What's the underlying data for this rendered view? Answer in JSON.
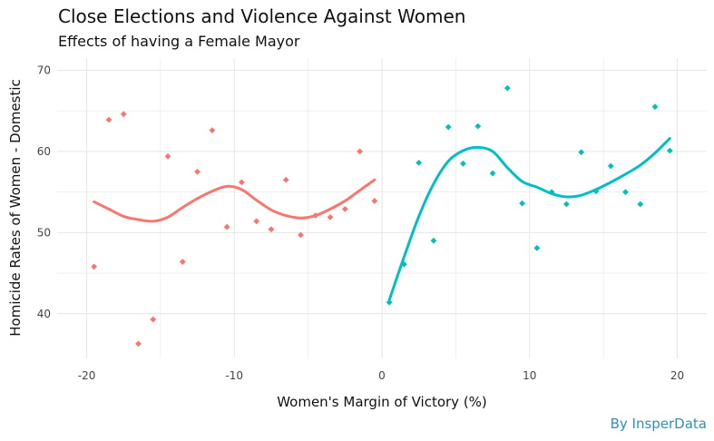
{
  "title": "Close Elections and Violence Against Women",
  "subtitle": "Effects of having a Female Mayor",
  "caption": "By InsperData",
  "caption_color": "#2e8fbf",
  "colors": {
    "left_series": "#f8766d",
    "right_series": "#00bfc4",
    "grid": "#e6e6e6",
    "text": "#444444"
  },
  "chart_data": {
    "type": "scatter",
    "title": "Close Elections and Violence Against Women",
    "subtitle": "Effects of having a Female Mayor",
    "xlabel": "Women's Margin of Victory (%)",
    "ylabel": "Homicide Rates of Women - Domestic",
    "xlim": [
      -22,
      22
    ],
    "ylim": [
      34.5,
      71.5
    ],
    "x_ticks": [
      -20,
      -10,
      0,
      10,
      20
    ],
    "y_ticks": [
      40,
      50,
      60,
      70
    ],
    "x_tick_labels": [
      "-20",
      "-10",
      "0",
      "10",
      "20"
    ],
    "y_tick_labels": [
      "40",
      "50",
      "60",
      "70"
    ],
    "grid": true,
    "legend": "none",
    "series": [
      {
        "points": [
          [
            -19.5,
            45.8
          ],
          [
            -18.5,
            63.9
          ],
          [
            -17.5,
            64.6
          ],
          [
            -16.5,
            36.3
          ],
          [
            -15.5,
            39.3
          ],
          [
            -14.5,
            59.4
          ],
          [
            -13.5,
            46.4
          ],
          [
            -12.5,
            57.5
          ],
          [
            -11.5,
            62.6
          ],
          [
            -10.5,
            50.7
          ],
          [
            -9.5,
            56.2
          ],
          [
            -8.5,
            51.4
          ],
          [
            -7.5,
            50.4
          ],
          [
            -6.5,
            56.5
          ],
          [
            -5.5,
            49.7
          ],
          [
            -4.5,
            52.1
          ],
          [
            -3.5,
            51.9
          ],
          [
            -2.5,
            52.9
          ],
          [
            -1.5,
            60.0
          ],
          [
            -0.5,
            53.9
          ]
        ],
        "smooth": [
          [
            -19.5,
            53.8
          ],
          [
            -18.5,
            52.9
          ],
          [
            -17.5,
            52.0
          ],
          [
            -16.5,
            51.6
          ],
          [
            -15.5,
            51.4
          ],
          [
            -14.5,
            51.9
          ],
          [
            -13.5,
            53.1
          ],
          [
            -12.5,
            54.2
          ],
          [
            -11.5,
            55.1
          ],
          [
            -10.5,
            55.7
          ],
          [
            -9.5,
            55.3
          ],
          [
            -8.5,
            54.0
          ],
          [
            -7.5,
            52.8
          ],
          [
            -6.5,
            52.1
          ],
          [
            -5.5,
            51.8
          ],
          [
            -4.5,
            52.1
          ],
          [
            -3.5,
            52.9
          ],
          [
            -2.5,
            53.9
          ],
          [
            -1.5,
            55.2
          ],
          [
            -0.5,
            56.5
          ]
        ]
      },
      {
        "points": [
          [
            0.5,
            41.4
          ],
          [
            1.5,
            46.1
          ],
          [
            2.5,
            58.6
          ],
          [
            3.5,
            49.0
          ],
          [
            4.5,
            63.0
          ],
          [
            5.5,
            58.5
          ],
          [
            6.5,
            63.1
          ],
          [
            7.5,
            57.3
          ],
          [
            8.5,
            67.8
          ],
          [
            9.5,
            53.6
          ],
          [
            10.5,
            48.1
          ],
          [
            11.5,
            55.0
          ],
          [
            12.5,
            53.5
          ],
          [
            13.5,
            59.9
          ],
          [
            14.5,
            55.1
          ],
          [
            15.5,
            58.2
          ],
          [
            16.5,
            55.0
          ],
          [
            17.5,
            53.5
          ],
          [
            18.5,
            65.5
          ],
          [
            19.5,
            60.1
          ]
        ],
        "smooth": [
          [
            0.5,
            41.7
          ],
          [
            1.5,
            47.0
          ],
          [
            2.5,
            52.0
          ],
          [
            3.5,
            56.0
          ],
          [
            4.5,
            58.8
          ],
          [
            5.5,
            60.1
          ],
          [
            6.5,
            60.5
          ],
          [
            7.5,
            60.0
          ],
          [
            8.5,
            58.0
          ],
          [
            9.5,
            56.3
          ],
          [
            10.5,
            55.6
          ],
          [
            11.5,
            54.8
          ],
          [
            12.5,
            54.4
          ],
          [
            13.5,
            54.6
          ],
          [
            14.5,
            55.3
          ],
          [
            15.5,
            56.2
          ],
          [
            16.5,
            57.2
          ],
          [
            17.5,
            58.3
          ],
          [
            18.5,
            59.8
          ],
          [
            19.5,
            61.6
          ]
        ]
      }
    ]
  }
}
